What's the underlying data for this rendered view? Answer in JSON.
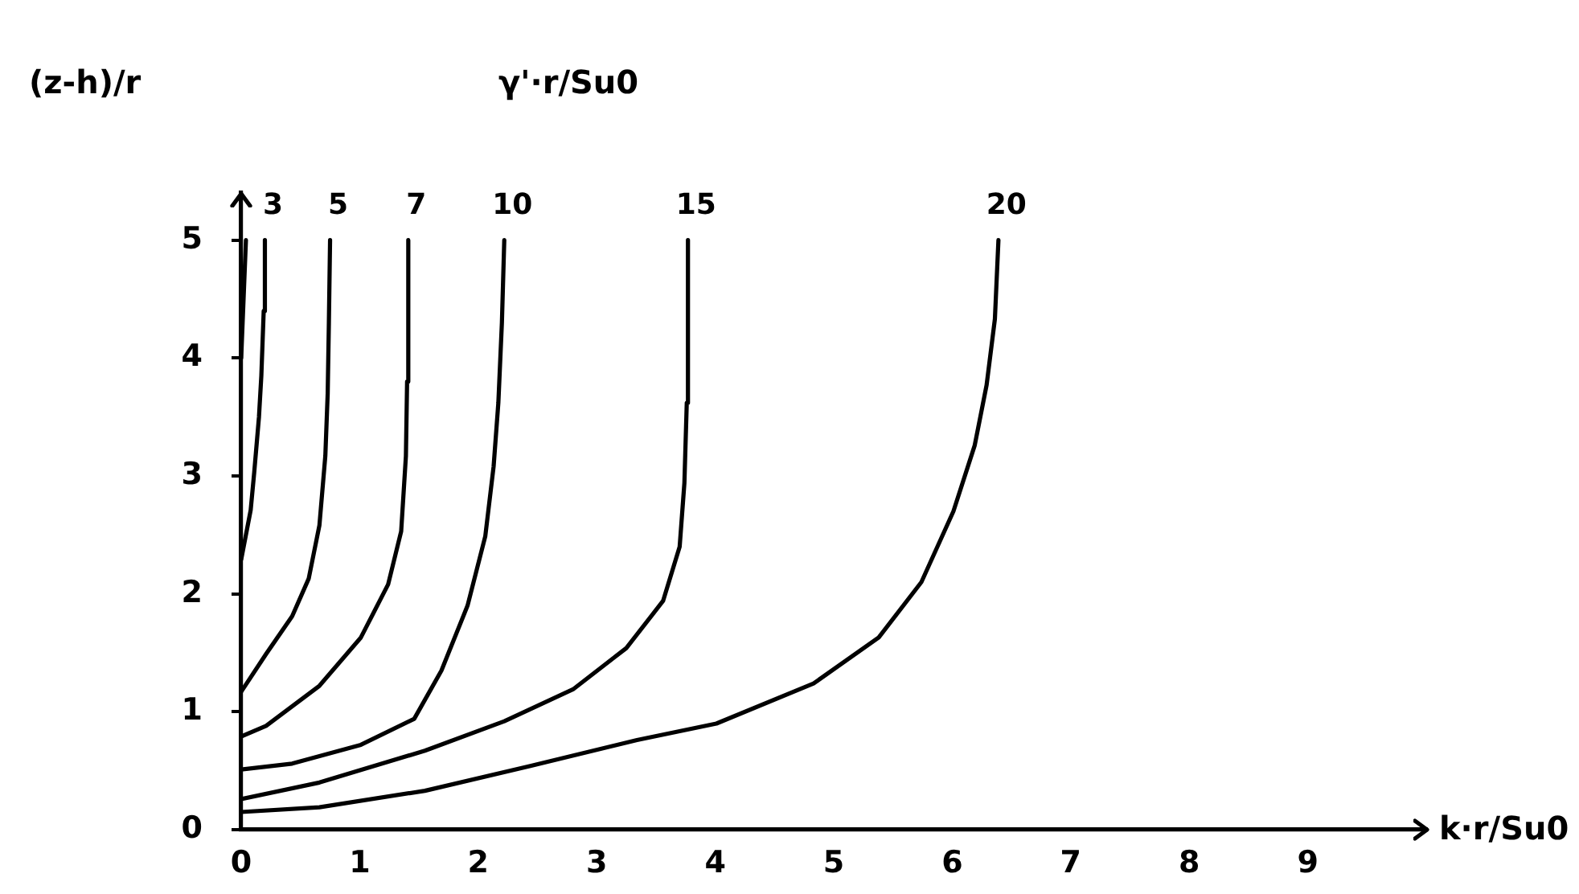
{
  "chart_data": {
    "type": "line",
    "xlabel": "k·r/Su0",
    "ylabel": "(z-h)/r",
    "legend_title": "γ'·r/Su0",
    "xlim": [
      0,
      10
    ],
    "ylim": [
      0,
      5.4
    ],
    "xticks": [
      0,
      1,
      2,
      3,
      4,
      5,
      6,
      7,
      8,
      9
    ],
    "yticks": [
      0,
      1,
      2,
      3,
      4,
      5
    ],
    "series": [
      {
        "color": "#000000",
        "x": [
          0,
          0.02,
          0.04
        ],
        "values": [
          4.0,
          4.5,
          5.0
        ]
      },
      {
        "name": "3",
        "color": "#000000",
        "x": [
          0,
          0.08,
          0.11,
          0.15,
          0.17,
          0.19,
          0.2
        ],
        "values": [
          2.29,
          2.71,
          3.03,
          3.5,
          3.85,
          4.4,
          5.0
        ]
      },
      {
        "name": "5",
        "color": "#000000",
        "x": [
          0,
          0.21,
          0.43,
          0.57,
          0.66,
          0.71,
          0.73,
          0.74,
          0.75
        ],
        "values": [
          1.17,
          1.49,
          1.81,
          2.13,
          2.58,
          3.17,
          3.7,
          4.3,
          5.0
        ]
      },
      {
        "name": "7",
        "color": "#000000",
        "x": [
          0,
          0.21,
          0.66,
          1.01,
          1.24,
          1.35,
          1.39,
          1.4,
          1.41
        ],
        "values": [
          0.79,
          0.88,
          1.22,
          1.63,
          2.08,
          2.53,
          3.17,
          3.8,
          5.0
        ]
      },
      {
        "name": "10",
        "color": "#000000",
        "x": [
          0,
          0.43,
          1.01,
          1.46,
          1.69,
          1.91,
          2.06,
          2.13,
          2.17,
          2.2,
          2.22
        ],
        "values": [
          0.51,
          0.56,
          0.72,
          0.94,
          1.35,
          1.9,
          2.49,
          3.08,
          3.62,
          4.3,
          5.0
        ]
      },
      {
        "name": "15",
        "color": "#000000",
        "x": [
          0,
          0.66,
          1.55,
          2.22,
          2.8,
          3.25,
          3.56,
          3.7,
          3.74,
          3.76,
          3.77
        ],
        "values": [
          0.26,
          0.4,
          0.67,
          0.92,
          1.19,
          1.54,
          1.94,
          2.4,
          2.94,
          3.62,
          5.0
        ]
      },
      {
        "name": "20",
        "color": "#000000",
        "x": [
          0,
          0.66,
          1.55,
          2.44,
          3.34,
          4.01,
          4.83,
          5.38,
          5.74,
          6.01,
          6.19,
          6.29,
          6.36,
          6.39
        ],
        "values": [
          0.15,
          0.19,
          0.33,
          0.54,
          0.76,
          0.9,
          1.24,
          1.63,
          2.1,
          2.7,
          3.26,
          3.77,
          4.33,
          5.0
        ]
      }
    ]
  }
}
